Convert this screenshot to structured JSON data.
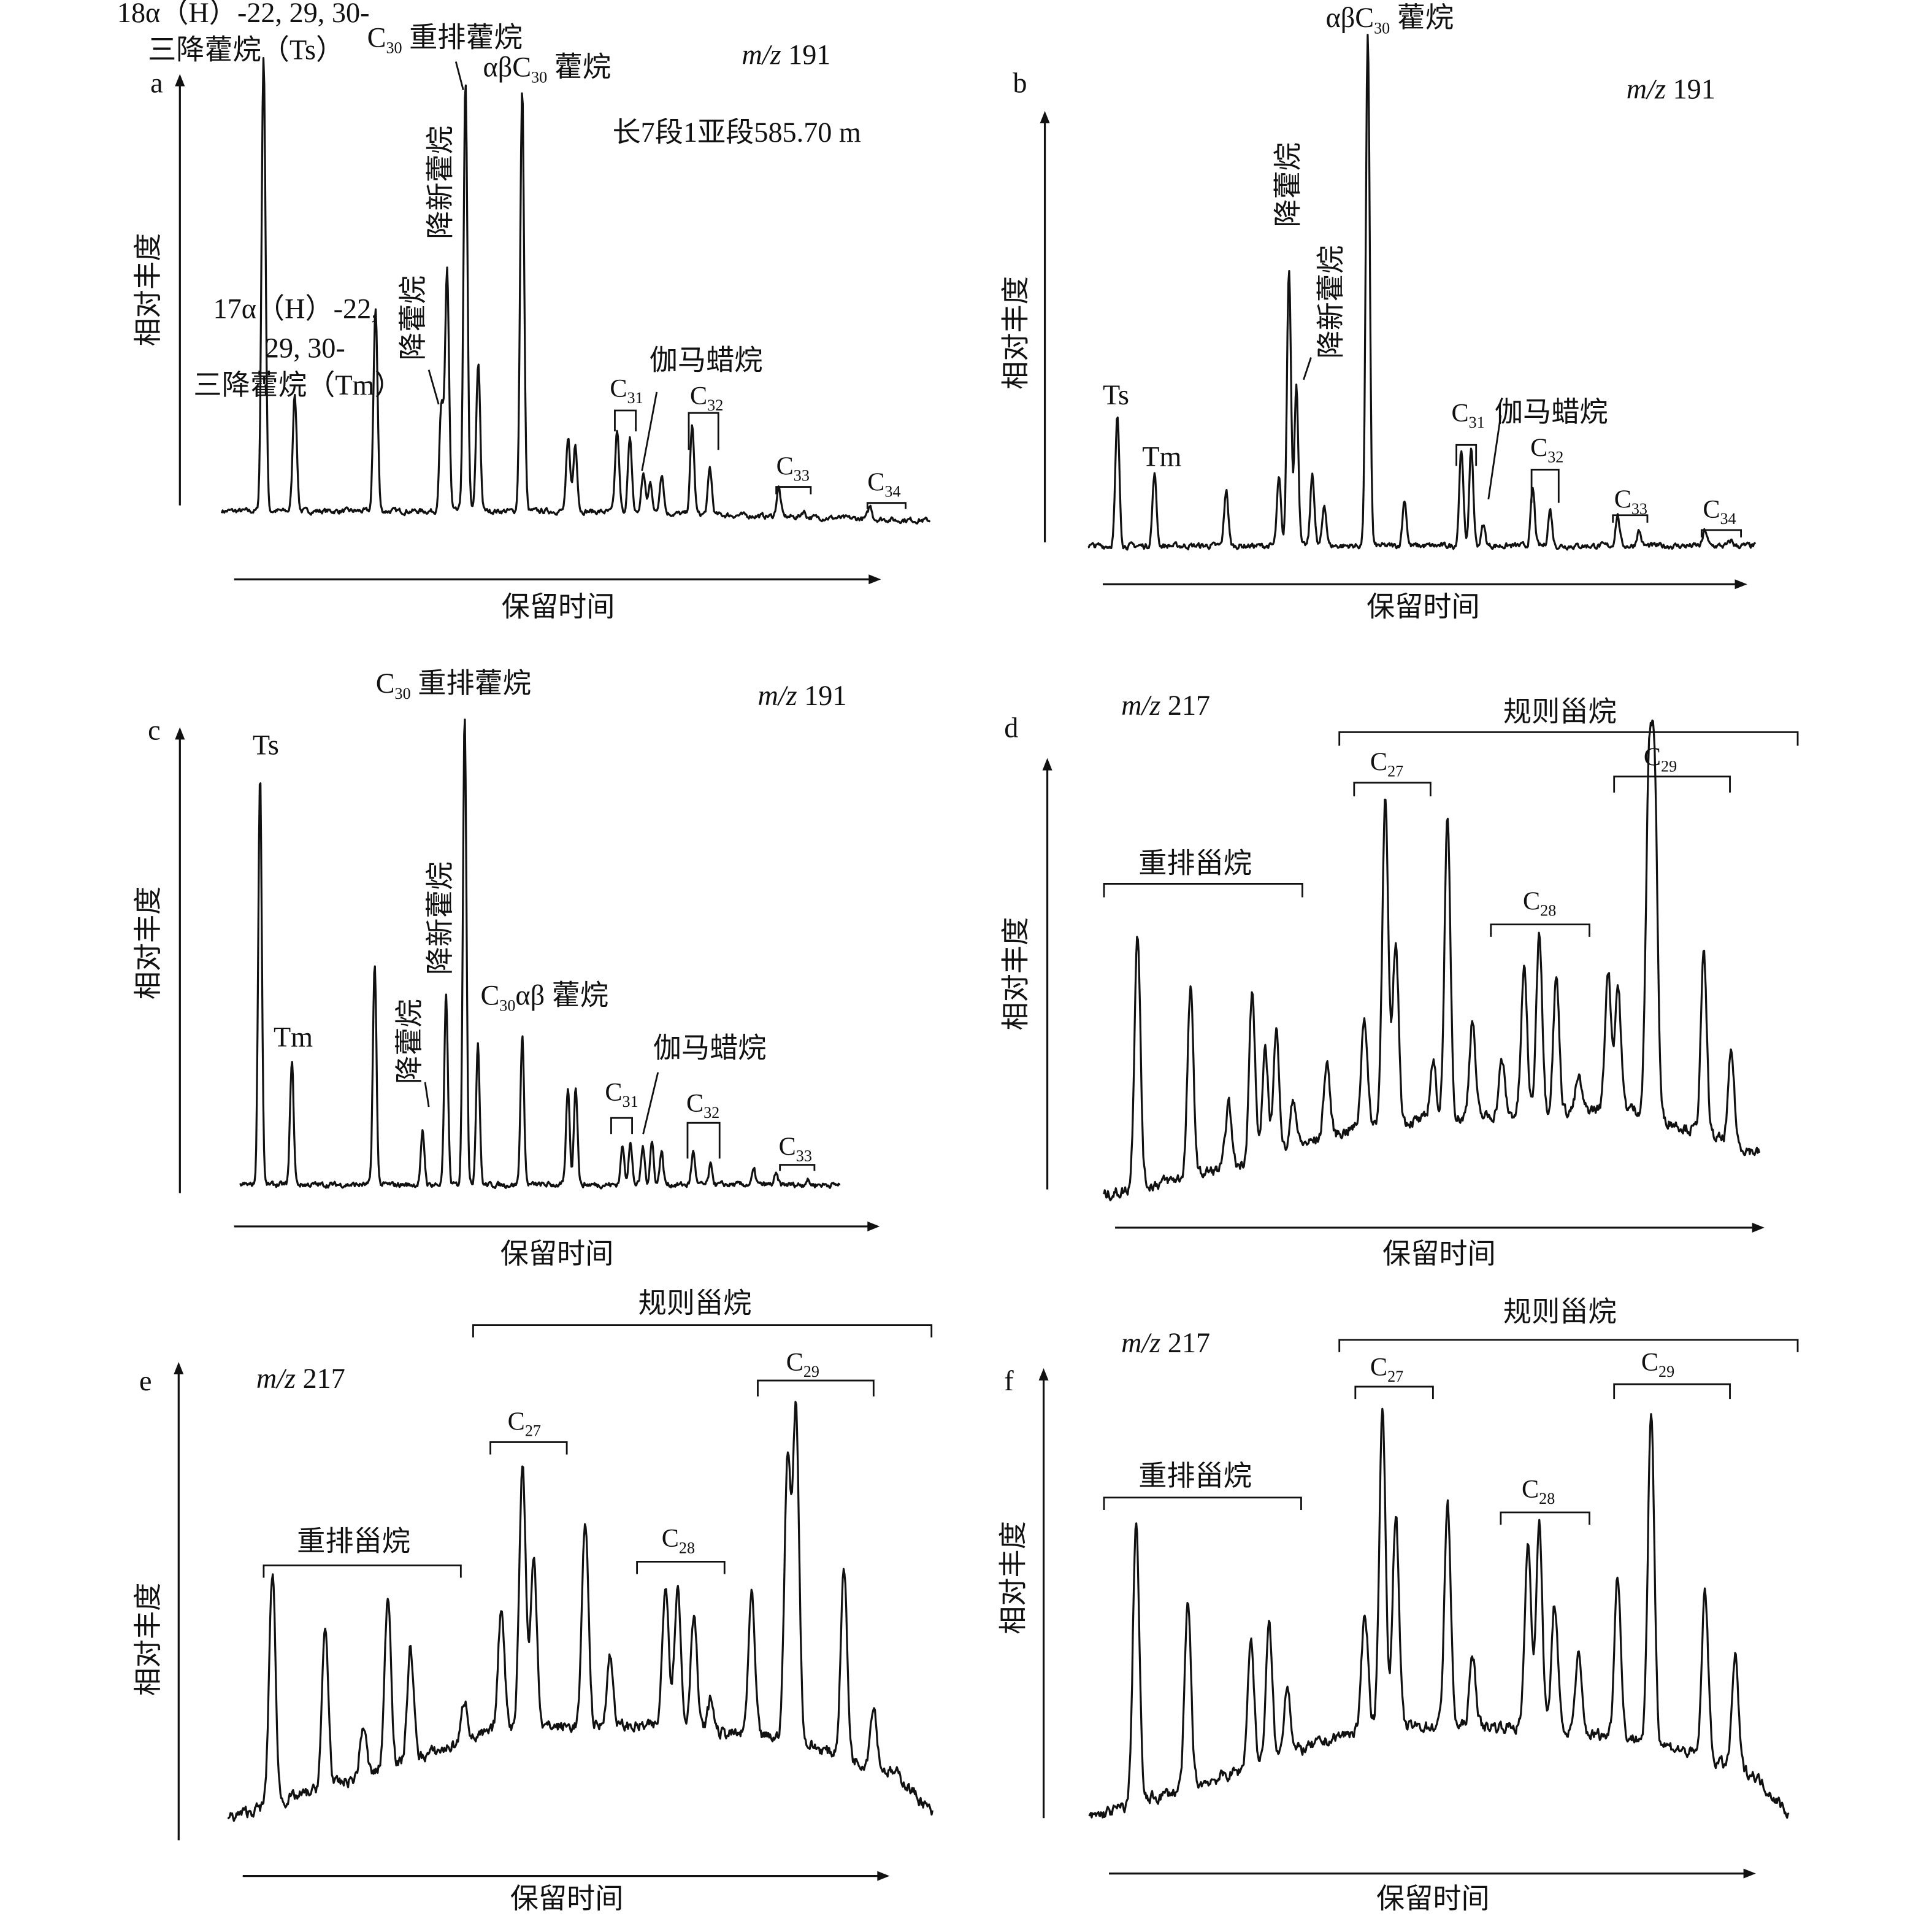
{
  "chart_data": [
    {
      "type": "line",
      "panel": "a",
      "ion": {
        "prefix": "m/z",
        "value": " 191"
      },
      "xlabel": "保留时间",
      "ylabel": "相对丰度",
      "sample": "长7段1亚段585.70 m",
      "xlim": [
        0,
        100
      ],
      "ylim": [
        0,
        100
      ],
      "baseline": [
        [
          0,
          4
        ],
        [
          50,
          4
        ],
        [
          100,
          2
        ]
      ],
      "peaks": [
        [
          5.9,
          100
        ],
        [
          10.3,
          29
        ],
        [
          21.7,
          47
        ],
        [
          31.0,
          26
        ],
        [
          31.8,
          55
        ],
        [
          34.4,
          94
        ],
        [
          36.2,
          35
        ],
        [
          42.4,
          93
        ],
        [
          48.9,
          19
        ],
        [
          49.9,
          18
        ],
        [
          55.8,
          21
        ],
        [
          57.6,
          19
        ],
        [
          59.5,
          12
        ],
        [
          60.5,
          10
        ],
        [
          62.1,
          12
        ],
        [
          66.4,
          22
        ],
        [
          68.9,
          13
        ],
        [
          78.6,
          9
        ],
        [
          82.1,
          4
        ],
        [
          91.5,
          5
        ],
        [
          95.3,
          2
        ]
      ],
      "annotations": {
        "ts_line1": {
          "text": "18α（H）-22, 29, 30-"
        },
        "ts_line2": {
          "text": "三降藿烷（Ts）"
        },
        "c30_rearranged": {
          "text": "C",
          "sub": "30",
          "tail": " 重排藿烷"
        },
        "ab_c30": {
          "text": "αβC",
          "sub": "30",
          "tail": " 藿烷"
        },
        "norneohopane": {
          "text": "降新藿烷"
        },
        "tm_line1": {
          "text": "17α（H）-22,"
        },
        "tm_line2": {
          "text": "29, 30-"
        },
        "tm_line3": {
          "text": "三降藿烷（Tm）"
        },
        "norhopane": {
          "text": "降藿烷"
        },
        "gammacerane": {
          "text": "伽马蜡烷"
        },
        "c31": {
          "text": "C",
          "sub": "31"
        },
        "c32": {
          "text": "C",
          "sub": "32"
        },
        "c33": {
          "text": "C",
          "sub": "33"
        },
        "c34": {
          "text": "C",
          "sub": "34"
        }
      }
    },
    {
      "type": "line",
      "panel": "b",
      "ion": {
        "prefix": "m/z",
        "value": " 191"
      },
      "xlabel": "保留时间",
      "ylabel": "相对丰度",
      "xlim": [
        0,
        100
      ],
      "ylim": [
        0,
        100
      ],
      "baseline": [
        [
          0,
          1
        ],
        [
          100,
          1
        ]
      ],
      "peaks": [
        [
          4.4,
          26
        ],
        [
          9.96,
          15
        ],
        [
          20.7,
          12
        ],
        [
          28.6,
          14
        ],
        [
          30.1,
          55
        ],
        [
          31.2,
          32
        ],
        [
          33.6,
          15
        ],
        [
          35.4,
          9
        ],
        [
          41.9,
          100
        ],
        [
          47.4,
          10
        ],
        [
          55.9,
          20
        ],
        [
          57.4,
          20
        ],
        [
          59.2,
          5
        ],
        [
          66.6,
          12
        ],
        [
          69.2,
          8
        ],
        [
          79.3,
          7
        ],
        [
          82.5,
          4
        ],
        [
          92.4,
          4
        ],
        [
          96.3,
          2
        ]
      ],
      "annotations": {
        "ab_c30": {
          "text": "αβC",
          "sub": "30",
          "tail": " 藿烷"
        },
        "norhopane": {
          "text": "降藿烷"
        },
        "norneohopane": {
          "text": "降新藿烷"
        },
        "ts": {
          "text": "Ts"
        },
        "tm": {
          "text": "Tm"
        },
        "c31": {
          "text": "C",
          "sub": "31"
        },
        "gammacerane": {
          "text": "伽马蜡烷"
        },
        "c32": {
          "text": "C",
          "sub": "32"
        },
        "c33": {
          "text": "C",
          "sub": "33"
        },
        "c34": {
          "text": "C",
          "sub": "34"
        }
      }
    },
    {
      "type": "line",
      "panel": "c",
      "ion": {
        "prefix": "m/z",
        "value": " 191"
      },
      "xlabel": "保留时间",
      "ylabel": "相对丰度",
      "xlim": [
        0,
        100
      ],
      "ylim": [
        0,
        100
      ],
      "baseline": [
        [
          0,
          1
        ],
        [
          100,
          1
        ]
      ],
      "peaks": [
        [
          3.3,
          87.5
        ],
        [
          8.6,
          27
        ],
        [
          22.4,
          47
        ],
        [
          30.4,
          12
        ],
        [
          34.3,
          41
        ],
        [
          37.4,
          100
        ],
        [
          39.6,
          31
        ],
        [
          47.0,
          32
        ],
        [
          54.6,
          21
        ],
        [
          55.9,
          22
        ],
        [
          63.7,
          9
        ],
        [
          65.0,
          10
        ],
        [
          67.1,
          9
        ],
        [
          68.6,
          10
        ],
        [
          70.2,
          8
        ],
        [
          75.5,
          8
        ],
        [
          78.4,
          5
        ],
        [
          85.6,
          4
        ],
        [
          89.3,
          3
        ],
        [
          94.5,
          2
        ]
      ],
      "annotations": {
        "c30_rearranged": {
          "text": "C",
          "sub": "30",
          "tail": " 重排藿烷"
        },
        "ts": {
          "text": "Ts"
        },
        "tm": {
          "text": "Tm"
        },
        "norhopane": {
          "text": "降藿烷"
        },
        "norneohopane": {
          "text": "降新藿烷"
        },
        "c30_ab": {
          "text": "C",
          "sub": "30",
          "tail": "αβ 藿烷"
        },
        "gammacerane": {
          "text": "伽马蜡烷"
        },
        "c31": {
          "text": "C",
          "sub": "31"
        },
        "c32": {
          "text": "C",
          "sub": "32"
        },
        "c33": {
          "text": "C",
          "sub": "33"
        }
      }
    },
    {
      "type": "line",
      "panel": "d",
      "ion": {
        "prefix": "m/z",
        "value": " 217"
      },
      "xlabel": "保留时间",
      "ylabel": "相对丰度",
      "xlim": [
        0,
        100
      ],
      "ylim": [
        0,
        100
      ],
      "baseline": [
        [
          0,
          3
        ],
        [
          20,
          10
        ],
        [
          40,
          20
        ],
        [
          60,
          22
        ],
        [
          80,
          24
        ],
        [
          100,
          13
        ]
      ],
      "peaks": [
        [
          5.1,
          66
        ],
        [
          13.2,
          52
        ],
        [
          19.0,
          25
        ],
        [
          22.6,
          51
        ],
        [
          24.6,
          37
        ],
        [
          26.3,
          42
        ],
        [
          28.9,
          26
        ],
        [
          34.0,
          35
        ],
        [
          39.7,
          46
        ],
        [
          42.9,
          98
        ],
        [
          44.5,
          63
        ],
        [
          50.2,
          35
        ],
        [
          52.4,
          92
        ],
        [
          56.2,
          45
        ],
        [
          60.7,
          35
        ],
        [
          64.1,
          57
        ],
        [
          66.4,
          66
        ],
        [
          69.0,
          55
        ],
        [
          72.4,
          31
        ],
        [
          76.9,
          57
        ],
        [
          78.4,
          53
        ],
        [
          83.1,
          98
        ],
        [
          84.0,
          100
        ],
        [
          91.5,
          60
        ],
        [
          95.7,
          37
        ]
      ],
      "annotations": {
        "regular_steranes": {
          "text": "规则甾烷"
        },
        "rearranged_steranes": {
          "text": "重排甾烷"
        },
        "c27": {
          "text": "C",
          "sub": "27"
        },
        "c28": {
          "text": "C",
          "sub": "28"
        },
        "c29": {
          "text": "C",
          "sub": "29"
        }
      }
    },
    {
      "type": "line",
      "panel": "e",
      "ion": {
        "prefix": "m/z",
        "value": " 217"
      },
      "xlabel": "保留时间",
      "ylabel": "相对丰度",
      "xlim": [
        0,
        100
      ],
      "ylim": [
        0,
        100
      ],
      "baseline": [
        [
          0,
          7
        ],
        [
          20,
          17
        ],
        [
          40,
          28
        ],
        [
          60,
          28
        ],
        [
          80,
          25
        ],
        [
          95,
          17
        ],
        [
          100,
          8
        ]
      ],
      "peaks": [
        [
          6.3,
          63
        ],
        [
          13.8,
          50
        ],
        [
          19.2,
          28
        ],
        [
          22.7,
          58
        ],
        [
          25.9,
          46
        ],
        [
          33.6,
          34
        ],
        [
          38.8,
          55
        ],
        [
          41.8,
          88
        ],
        [
          43.4,
          66
        ],
        [
          50.7,
          75
        ],
        [
          54.2,
          44
        ],
        [
          62.1,
          61
        ],
        [
          63.8,
          60
        ],
        [
          66.1,
          54
        ],
        [
          68.5,
          34
        ],
        [
          74.3,
          58
        ],
        [
          79.4,
          88
        ],
        [
          80.6,
          100
        ],
        [
          87.4,
          64
        ],
        [
          91.6,
          33
        ]
      ],
      "annotations": {
        "regular_steranes": {
          "text": "规则甾烷"
        },
        "rearranged_steranes": {
          "text": "重排甾烷"
        },
        "c27": {
          "text": "C",
          "sub": "27"
        },
        "c28": {
          "text": "C",
          "sub": "28"
        },
        "c29": {
          "text": "C",
          "sub": "29"
        }
      }
    },
    {
      "type": "line",
      "panel": "f",
      "ion": {
        "prefix": "m/z",
        "value": " 217"
      },
      "xlabel": "保留时间",
      "ylabel": "相对丰度",
      "xlim": [
        0,
        100
      ],
      "ylim": [
        0,
        100
      ],
      "baseline": [
        [
          0,
          7
        ],
        [
          20,
          17
        ],
        [
          40,
          28
        ],
        [
          60,
          28
        ],
        [
          80,
          25
        ],
        [
          95,
          17
        ],
        [
          100,
          8
        ]
      ],
      "peaks": [
        [
          6.7,
          75
        ],
        [
          14.1,
          56
        ],
        [
          23.1,
          48
        ],
        [
          25.7,
          51
        ],
        [
          28.3,
          38
        ],
        [
          39.4,
          54
        ],
        [
          41.9,
          100
        ],
        [
          43.8,
          77
        ],
        [
          51.2,
          79
        ],
        [
          54.8,
          44
        ],
        [
          62.7,
          70
        ],
        [
          64.3,
          74
        ],
        [
          66.5,
          56
        ],
        [
          69.9,
          44
        ],
        [
          75.5,
          63
        ],
        [
          80.3,
          100
        ],
        [
          88.0,
          59
        ],
        [
          92.3,
          44
        ]
      ],
      "annotations": {
        "regular_steranes": {
          "text": "规则甾烷"
        },
        "rearranged_steranes": {
          "text": "重排甾烷"
        },
        "c27": {
          "text": "C",
          "sub": "27"
        },
        "c28": {
          "text": "C",
          "sub": "28"
        },
        "c29": {
          "text": "C",
          "sub": "29"
        }
      }
    }
  ]
}
